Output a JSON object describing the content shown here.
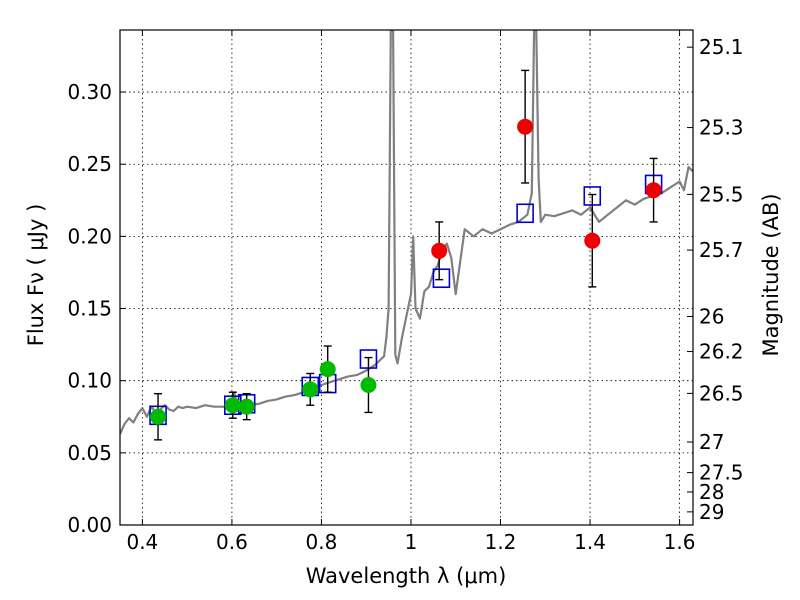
{
  "chart_data": {
    "type": "scatter",
    "title": "",
    "xlabel": "Wavelength  λ (μm)",
    "ylabel": "Flux  Fν  ( μJy )",
    "ylabel_right": "Magnitude (AB)",
    "xlim": [
      0.35,
      1.63
    ],
    "ylim": [
      0.0,
      0.343
    ],
    "grid": true,
    "x_ticks": [
      0.4,
      0.6,
      0.8,
      1.0,
      1.2,
      1.4,
      1.6
    ],
    "x_tick_labels": [
      "0.4",
      "0.6",
      "0.8",
      "1",
      "1.2",
      "1.4",
      "1.6"
    ],
    "y_ticks": [
      0.0,
      0.05,
      0.1,
      0.15,
      0.2,
      0.25,
      0.3
    ],
    "y_tick_labels": [
      "0.00",
      "0.05",
      "0.10",
      "0.15",
      "0.20",
      "0.25",
      "0.30"
    ],
    "right_ticks": [
      {
        "flux": 0.3311,
        "label": "25.1"
      },
      {
        "flux": 0.2754,
        "label": "25.3"
      },
      {
        "flux": 0.2291,
        "label": "25.5"
      },
      {
        "flux": 0.1905,
        "label": "25.7"
      },
      {
        "flux": 0.1445,
        "label": "26"
      },
      {
        "flux": 0.1202,
        "label": "26.2"
      },
      {
        "flux": 0.0912,
        "label": "26.5"
      },
      {
        "flux": 0.0575,
        "label": "27"
      },
      {
        "flux": 0.0363,
        "label": "27.5"
      },
      {
        "flux": 0.0229,
        "label": "28"
      },
      {
        "flux": 0.0091,
        "label": "29"
      }
    ],
    "colors": {
      "model": "#808080",
      "green": "#00bb00",
      "red": "#ee0000",
      "square": "#0000cc",
      "errorbar": "#000000",
      "grid": "#000000"
    },
    "series": [
      {
        "kind": "model_spectrum",
        "x": [
          0.35,
          0.36,
          0.37,
          0.38,
          0.39,
          0.4,
          0.41,
          0.42,
          0.43,
          0.44,
          0.45,
          0.46,
          0.47,
          0.48,
          0.49,
          0.5,
          0.52,
          0.54,
          0.56,
          0.58,
          0.6,
          0.605,
          0.61,
          0.62,
          0.64,
          0.66,
          0.68,
          0.7,
          0.72,
          0.74,
          0.76,
          0.78,
          0.8,
          0.82,
          0.84,
          0.86,
          0.88,
          0.9,
          0.91,
          0.92,
          0.93,
          0.94,
          0.945,
          0.95,
          0.955,
          0.96,
          0.965,
          0.97,
          0.98,
          0.99,
          1.0,
          1.005,
          1.01,
          1.02,
          1.03,
          1.04,
          1.05,
          1.06,
          1.07,
          1.08,
          1.09,
          1.1,
          1.12,
          1.14,
          1.16,
          1.18,
          1.2,
          1.22,
          1.24,
          1.26,
          1.27,
          1.275,
          1.28,
          1.285,
          1.29,
          1.3,
          1.32,
          1.34,
          1.36,
          1.38,
          1.4,
          1.42,
          1.44,
          1.46,
          1.48,
          1.5,
          1.52,
          1.54,
          1.56,
          1.58,
          1.6,
          1.61,
          1.62,
          1.63
        ],
        "y": [
          0.063,
          0.07,
          0.074,
          0.071,
          0.077,
          0.081,
          0.075,
          0.082,
          0.078,
          0.08,
          0.083,
          0.08,
          0.079,
          0.082,
          0.081,
          0.082,
          0.081,
          0.083,
          0.082,
          0.082,
          0.08,
          0.092,
          0.085,
          0.082,
          0.083,
          0.084,
          0.086,
          0.087,
          0.089,
          0.09,
          0.092,
          0.094,
          0.097,
          0.099,
          0.101,
          0.103,
          0.104,
          0.107,
          0.109,
          0.111,
          0.114,
          0.117,
          0.13,
          0.15,
          0.343,
          0.343,
          0.118,
          0.112,
          0.13,
          0.145,
          0.16,
          0.2,
          0.15,
          0.143,
          0.162,
          0.165,
          0.175,
          0.18,
          0.19,
          0.195,
          0.185,
          0.16,
          0.205,
          0.2,
          0.205,
          0.202,
          0.205,
          0.208,
          0.21,
          0.215,
          0.23,
          0.343,
          0.343,
          0.24,
          0.21,
          0.215,
          0.214,
          0.216,
          0.218,
          0.215,
          0.22,
          0.21,
          0.215,
          0.22,
          0.225,
          0.222,
          0.226,
          0.228,
          0.23,
          0.234,
          0.238,
          0.232,
          0.248,
          0.245
        ]
      },
      {
        "kind": "measured_green",
        "x": [
          0.435,
          0.602,
          0.633,
          0.775,
          0.814,
          0.905
        ],
        "y": [
          0.075,
          0.083,
          0.082,
          0.094,
          0.108,
          0.097
        ],
        "err": [
          0.016,
          0.009,
          0.009,
          0.011,
          0.016,
          0.019
        ]
      },
      {
        "kind": "measured_red",
        "x": [
          1.063,
          1.255,
          1.405,
          1.542
        ],
        "y": [
          0.19,
          0.276,
          0.197,
          0.232
        ],
        "err": [
          0.02,
          0.039,
          0.032,
          0.022
        ]
      },
      {
        "kind": "model_photometry_squares",
        "x": [
          0.435,
          0.602,
          0.633,
          0.775,
          0.814,
          0.905,
          1.068,
          1.255,
          1.405,
          1.542
        ],
        "y": [
          0.076,
          0.083,
          0.084,
          0.096,
          0.098,
          0.115,
          0.171,
          0.216,
          0.228,
          0.236
        ]
      }
    ]
  }
}
